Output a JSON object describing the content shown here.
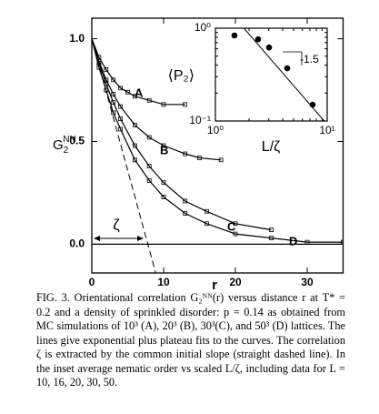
{
  "chart_data": [
    {
      "type": "line",
      "xlabel": "r",
      "ylabel": {
        "base": "G",
        "sub": "2",
        "sup": "NN"
      },
      "xlim": [
        0,
        35
      ],
      "ylim": [
        -0.14,
        1.1
      ],
      "xticks": [
        0,
        10,
        20,
        30
      ],
      "yticks": [
        {
          "value": 0,
          "label": "0.0"
        },
        {
          "value": 0.5,
          "label": "0.5"
        },
        {
          "value": 1,
          "label": "1.0"
        }
      ],
      "series": [
        {
          "name": "A",
          "color": "#000000",
          "x": [
            0,
            1,
            2,
            3,
            4,
            5,
            6,
            8,
            10,
            13
          ],
          "values": [
            1.0,
            0.91,
            0.85,
            0.8,
            0.76,
            0.74,
            0.72,
            0.7,
            0.68,
            0.68
          ]
        },
        {
          "name": "B",
          "color": "#000000",
          "x": [
            0,
            1,
            2,
            3,
            4,
            6,
            8,
            10,
            13,
            15,
            18
          ],
          "values": [
            1.0,
            0.89,
            0.8,
            0.73,
            0.67,
            0.58,
            0.52,
            0.48,
            0.44,
            0.42,
            0.41
          ]
        },
        {
          "name": "C",
          "color": "#000000",
          "x": [
            0,
            1,
            2,
            3,
            4,
            6,
            8,
            10,
            13,
            16,
            20,
            25
          ],
          "values": [
            1.0,
            0.88,
            0.78,
            0.69,
            0.61,
            0.48,
            0.38,
            0.3,
            0.21,
            0.16,
            0.1,
            0.07
          ]
        },
        {
          "name": "D",
          "color": "#000000",
          "x": [
            0,
            1,
            2,
            3,
            4,
            6,
            8,
            10,
            13,
            16,
            20,
            25,
            30,
            35
          ],
          "values": [
            1.0,
            0.86,
            0.75,
            0.64,
            0.56,
            0.41,
            0.31,
            0.23,
            0.15,
            0.1,
            0.05,
            0.03,
            0.01,
            0.01
          ]
        }
      ],
      "guide": {
        "x": [
          0,
          8.9
        ],
        "values": [
          1.0,
          -0.14
        ]
      },
      "annotation": "ζ"
    },
    {
      "type": "scatter",
      "log_x": true,
      "log_y": true,
      "xlabel": "L/ζ",
      "ylabel": "⟨P₂⟩",
      "xlim": [
        1,
        10
      ],
      "ylim": [
        0.1,
        1
      ],
      "xticks": [
        {
          "value": 1,
          "label": "10⁰"
        },
        {
          "value": 10,
          "label": "10¹"
        }
      ],
      "yticks": [
        {
          "value": 0.1,
          "label": "10⁻¹"
        },
        {
          "value": 1,
          "label": "10⁰"
        }
      ],
      "x": [
        1.48,
        2.41,
        3.02,
        4.39,
        7.41
      ],
      "values": [
        0.835,
        0.76,
        0.62,
        0.37,
        0.15
      ],
      "fit": {
        "x": [
          1.8,
          9.4
        ],
        "values": [
          1.0,
          0.1
        ]
      },
      "annotation": "-1.5"
    }
  ],
  "caption": "FIG. 3.   Orientational correlation G₂ᴺᴺ(r) versus distance r at T* = 0.2 and a density of sprinkled disorder: p = 0.14 as obtained from MC simulations of 10³ (A), 20³ (B), 30³(C), and 50³ (D) lattices. The lines give exponential plus plateau fits to the curves. The correlation ζ is extracted by the common initial slope (straight dashed line). In the inset average nematic order vs scaled L/ζ, including data for L = 10, 16, 20, 30, 50."
}
